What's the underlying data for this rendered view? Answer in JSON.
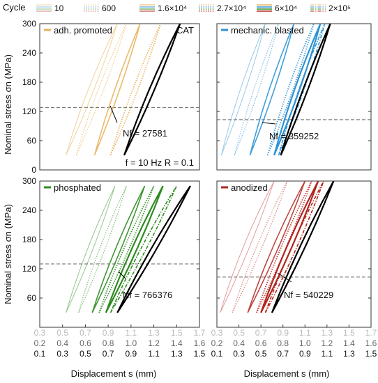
{
  "legend": {
    "title": "Cycle",
    "entries": [
      {
        "label": "10",
        "style": "solid-thin"
      },
      {
        "label": "600",
        "style": "dotted"
      },
      {
        "label": "1.6×10⁴",
        "style": "solid-thick"
      },
      {
        "label": "2.7×10⁴",
        "style": "dotted-thick"
      },
      {
        "label": "6×10⁴",
        "style": "solid-bold"
      },
      {
        "label": "2×10⁵",
        "style": "dashdot"
      }
    ]
  },
  "labels": {
    "ylabel_top": "Nominal stress σn (MPa)",
    "ylabel_bottom": "Nominal stress σn (MPa)",
    "xlabel_left": "Displacement s (mm)",
    "xlabel_right": "Displacement s (mm)",
    "test_params": "f = 10 Hz  R = 0.1",
    "cat_label": "CAT"
  },
  "chart_data": [
    {
      "panel": "adh. promoted",
      "type": "line",
      "color": "#e8b25a",
      "ref_color": "#000000",
      "y_ticks": [
        0,
        60,
        120,
        180,
        240,
        300
      ],
      "ylim": [
        0,
        300
      ],
      "xlim": [
        0.1,
        1.5
      ],
      "threshold_stress": 128,
      "nf_text": "Nf = 27581",
      "series": [
        {
          "name": "10",
          "lower": [
            [
              0.33,
              30
            ],
            [
              0.78,
              300
            ]
          ],
          "upper": [
            [
              0.33,
              30
            ],
            [
              0.7,
              300
            ]
          ],
          "style": "solid-thin",
          "opacity": 0.6
        },
        {
          "name": "600",
          "lower": [
            [
              0.42,
              30
            ],
            [
              0.86,
              300
            ]
          ],
          "upper": [
            [
              0.42,
              30
            ],
            [
              0.79,
              300
            ]
          ],
          "style": "dotted",
          "opacity": 0.7
        },
        {
          "name": "1.6×10⁴",
          "lower": [
            [
              0.58,
              30
            ],
            [
              0.98,
              300
            ]
          ],
          "upper": [
            [
              0.58,
              30
            ],
            [
              0.93,
              300
            ]
          ],
          "style": "solid-thick",
          "opacity": 0.9
        },
        {
          "name": "2.7×10⁴",
          "lower": [
            [
              0.72,
              30
            ],
            [
              1.16,
              300
            ]
          ],
          "upper": [
            [
              0.72,
              30
            ],
            [
              1.1,
              300
            ]
          ],
          "style": "dotted-thick",
          "opacity": 0.9
        },
        {
          "name": "CAT",
          "lower": [
            [
              0.84,
              30
            ],
            [
              1.33,
              300
            ]
          ],
          "upper": [
            [
              0.84,
              30
            ],
            [
              1.27,
              300
            ]
          ],
          "style": "solid-bold",
          "ref": true
        }
      ]
    },
    {
      "panel": "mechanic. blasted",
      "type": "line",
      "color": "#2f93d4",
      "ref_color": "#000000",
      "y_ticks": [
        0,
        60,
        120,
        180,
        240,
        300
      ],
      "ylim": [
        0,
        300
      ],
      "xlim": [
        0.3,
        1.7
      ],
      "threshold_stress": 103,
      "nf_text": "Nf = 359252",
      "series": [
        {
          "name": "10",
          "lower": [
            [
              0.34,
              30
            ],
            [
              0.74,
              300
            ]
          ],
          "upper": [
            [
              0.34,
              30
            ],
            [
              0.67,
              300
            ]
          ],
          "style": "solid-thin",
          "opacity": 0.5
        },
        {
          "name": "600",
          "lower": [
            [
              0.46,
              30
            ],
            [
              0.86,
              300
            ]
          ],
          "upper": [
            [
              0.46,
              30
            ],
            [
              0.8,
              300
            ]
          ],
          "style": "dotted",
          "opacity": 0.6
        },
        {
          "name": "1.6×10⁴",
          "lower": [
            [
              0.6,
              30
            ],
            [
              1.0,
              300
            ]
          ],
          "upper": [
            [
              0.6,
              30
            ],
            [
              0.94,
              300
            ]
          ],
          "style": "solid-thick",
          "opacity": 0.9
        },
        {
          "name": "2.7×10⁴",
          "lower": [
            [
              0.76,
              30
            ],
            [
              1.18,
              300
            ]
          ],
          "upper": [
            [
              0.76,
              30
            ],
            [
              1.12,
              300
            ]
          ],
          "style": "dotted-thick",
          "opacity": 0.9
        },
        {
          "name": "6×10⁴",
          "lower": [
            [
              0.82,
              30
            ],
            [
              1.24,
              300
            ]
          ],
          "upper": [
            [
              0.82,
              30
            ],
            [
              1.18,
              300
            ]
          ],
          "style": "solid-bold",
          "opacity": 1
        },
        {
          "name": "2×10⁵",
          "lower": [
            [
              0.86,
              30
            ],
            [
              1.28,
              300
            ]
          ],
          "upper": [
            [
              0.86,
              30
            ],
            [
              1.22,
              300
            ]
          ],
          "style": "dashdot",
          "opacity": 1
        },
        {
          "name": "CAT",
          "lower": [
            [
              0.88,
              30
            ],
            [
              1.33,
              300
            ]
          ],
          "upper": [
            [
              0.88,
              30
            ],
            [
              1.28,
              300
            ]
          ],
          "style": "solid-bold",
          "ref": true
        }
      ]
    },
    {
      "panel": "phosphated",
      "type": "line",
      "color": "#2e8b20",
      "ref_color": "#000000",
      "y_ticks": [
        60,
        120,
        180,
        240,
        300
      ],
      "ylim": [
        0,
        300
      ],
      "xlim": [
        0.1,
        1.5
      ],
      "threshold_stress": 130,
      "nf_text": "Nf = 766376",
      "series": [
        {
          "name": "10",
          "lower": [
            [
              0.33,
              30
            ],
            [
              0.76,
              290
            ]
          ],
          "upper": [
            [
              0.33,
              30
            ],
            [
              0.69,
              290
            ]
          ],
          "style": "solid-thin",
          "opacity": 0.5
        },
        {
          "name": "600",
          "lower": [
            [
              0.44,
              30
            ],
            [
              0.86,
              290
            ]
          ],
          "upper": [
            [
              0.44,
              30
            ],
            [
              0.79,
              290
            ]
          ],
          "style": "dotted",
          "opacity": 0.6
        },
        {
          "name": "1.6×10⁴",
          "lower": [
            [
              0.56,
              30
            ],
            [
              1.02,
              290
            ]
          ],
          "upper": [
            [
              0.56,
              30
            ],
            [
              0.95,
              290
            ]
          ],
          "style": "solid-thick",
          "opacity": 0.9
        },
        {
          "name": "2.7×10⁴",
          "lower": [
            [
              0.62,
              30
            ],
            [
              1.1,
              290
            ]
          ],
          "upper": [
            [
              0.62,
              30
            ],
            [
              1.04,
              290
            ]
          ],
          "style": "dotted-thick",
          "opacity": 0.9
        },
        {
          "name": "6×10⁴",
          "lower": [
            [
              0.68,
              30
            ],
            [
              1.18,
              290
            ]
          ],
          "upper": [
            [
              0.68,
              30
            ],
            [
              1.12,
              290
            ]
          ],
          "style": "solid-bold",
          "opacity": 1
        },
        {
          "name": "2×10⁵",
          "lower": [
            [
              0.72,
              30
            ],
            [
              1.3,
              290
            ]
          ],
          "upper": [
            [
              0.72,
              30
            ],
            [
              1.24,
              290
            ]
          ],
          "style": "dashdot",
          "opacity": 1
        },
        {
          "name": "CAT",
          "lower": [
            [
              0.78,
              30
            ],
            [
              1.42,
              290
            ]
          ],
          "upper": [
            [
              0.78,
              30
            ],
            [
              1.36,
              290
            ]
          ],
          "style": "solid-bold",
          "ref": true
        }
      ]
    },
    {
      "panel": "anodized",
      "type": "line",
      "color": "#b3261e",
      "ref_color": "#000000",
      "y_ticks": [
        60,
        120,
        180,
        240,
        300
      ],
      "ylim": [
        0,
        300
      ],
      "xlim": [
        0.3,
        1.7
      ],
      "threshold_stress": 103,
      "nf_text": "Nf = 540229",
      "series": [
        {
          "name": "10",
          "lower": [
            [
              0.33,
              30
            ],
            [
              0.82,
              300
            ]
          ],
          "upper": [
            [
              0.33,
              30
            ],
            [
              0.72,
              300
            ]
          ],
          "style": "solid-thin",
          "opacity": 0.45
        },
        {
          "name": "600",
          "lower": [
            [
              0.44,
              30
            ],
            [
              0.94,
              300
            ]
          ],
          "upper": [
            [
              0.44,
              30
            ],
            [
              0.86,
              300
            ]
          ],
          "style": "dotted",
          "opacity": 0.55
        },
        {
          "name": "1.6×10⁴",
          "lower": [
            [
              0.58,
              30
            ],
            [
              1.1,
              300
            ]
          ],
          "upper": [
            [
              0.58,
              30
            ],
            [
              1.02,
              300
            ]
          ],
          "style": "solid-thick",
          "opacity": 0.85
        },
        {
          "name": "2.7×10⁴",
          "lower": [
            [
              0.66,
              30
            ],
            [
              1.16,
              300
            ]
          ],
          "upper": [
            [
              0.66,
              30
            ],
            [
              1.1,
              300
            ]
          ],
          "style": "dotted-thick",
          "opacity": 0.85
        },
        {
          "name": "6×10⁴",
          "lower": [
            [
              0.7,
              30
            ],
            [
              1.22,
              300
            ]
          ],
          "upper": [
            [
              0.7,
              30
            ],
            [
              1.16,
              300
            ]
          ],
          "style": "solid-bold",
          "opacity": 1
        },
        {
          "name": "2×10⁵",
          "lower": [
            [
              0.74,
              30
            ],
            [
              1.27,
              300
            ]
          ],
          "upper": [
            [
              0.74,
              30
            ],
            [
              1.21,
              300
            ]
          ],
          "style": "dashdot",
          "opacity": 1
        },
        {
          "name": "CAT",
          "lower": [
            [
              0.8,
              30
            ],
            [
              1.36,
              300
            ]
          ],
          "upper": [
            [
              0.8,
              30
            ],
            [
              1.3,
              300
            ]
          ],
          "style": "solid-bold",
          "ref": true
        }
      ]
    }
  ],
  "x_axes": {
    "left": {
      "row1": [
        "0.3",
        "0.5",
        "0.7",
        "0.9",
        "1.1",
        "1.3",
        "1.5",
        "1.7"
      ],
      "row2": [
        "0.2",
        "0.4",
        "0.6",
        "0.8",
        "1.0",
        "1.2",
        "1.4",
        "1.6"
      ],
      "row3": [
        "0.1",
        "0.3",
        "0.5",
        "0.7",
        "0.9",
        "1.1",
        "1.3",
        "1.5"
      ]
    },
    "right": {
      "row1": [
        "0.3",
        "0.5",
        "0.7",
        "0.9",
        "1.1",
        "1.3",
        "1.5",
        "1.7"
      ],
      "row2": [
        "0.2",
        "0.4",
        "0.6",
        "0.8",
        "1.0",
        "1.2",
        "1.4",
        "1.6"
      ],
      "row3": [
        "0.1",
        "0.3",
        "0.5",
        "0.7",
        "0.9",
        "1.1",
        "1.3",
        "1.5"
      ]
    }
  }
}
